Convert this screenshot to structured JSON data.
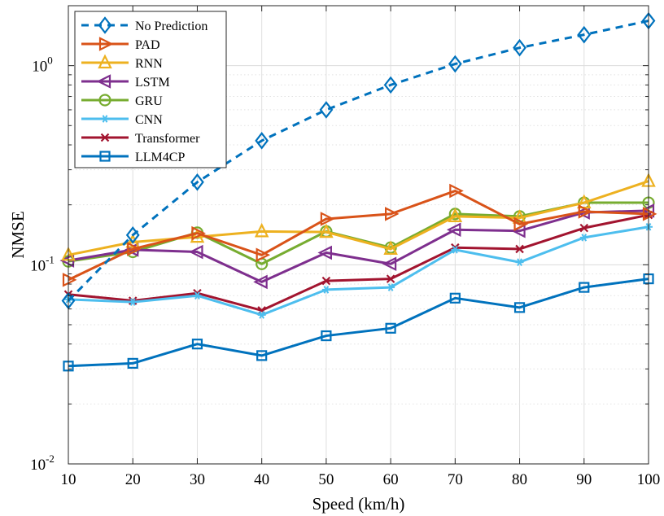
{
  "chart_data": {
    "type": "line",
    "xlabel": "Speed (km/h)",
    "ylabel": "NMSE",
    "yscale": "log",
    "xlim": [
      10,
      100
    ],
    "ylim": [
      0.01,
      2
    ],
    "grid": true,
    "legend_position": "top-left",
    "x": [
      10,
      20,
      30,
      40,
      50,
      60,
      70,
      80,
      90,
      100
    ],
    "x_ticks": [
      "10",
      "20",
      "30",
      "40",
      "50",
      "60",
      "70",
      "80",
      "90",
      "100"
    ],
    "y_ticks": [
      {
        "base": "10",
        "exp": "-2"
      },
      {
        "base": "10",
        "exp": "-1"
      },
      {
        "base": "10",
        "exp": "0"
      }
    ],
    "series": [
      {
        "name": "No Prediction",
        "color": "#0072BD",
        "dash": true,
        "marker": "diamond",
        "values": [
          0.066,
          0.141,
          0.26,
          0.42,
          0.6,
          0.8,
          1.02,
          1.23,
          1.43,
          1.68
        ]
      },
      {
        "name": "PAD",
        "color": "#D95319",
        "dash": false,
        "marker": "triangle-right",
        "values": [
          0.084,
          0.12,
          0.144,
          0.112,
          0.17,
          0.18,
          0.235,
          0.16,
          0.185,
          0.18
        ]
      },
      {
        "name": "RNN",
        "color": "#EDB120",
        "dash": false,
        "marker": "triangle-up",
        "values": [
          0.112,
          0.13,
          0.138,
          0.147,
          0.146,
          0.12,
          0.175,
          0.172,
          0.205,
          0.263
        ]
      },
      {
        "name": "LSTM",
        "color": "#7E2F8E",
        "dash": false,
        "marker": "triangle-left",
        "values": [
          0.105,
          0.119,
          0.116,
          0.082,
          0.115,
          0.101,
          0.15,
          0.148,
          0.183,
          0.187
        ]
      },
      {
        "name": "GRU",
        "color": "#77AC30",
        "dash": false,
        "marker": "circle",
        "values": [
          0.104,
          0.116,
          0.145,
          0.101,
          0.147,
          0.122,
          0.18,
          0.175,
          0.205,
          0.205
        ]
      },
      {
        "name": "CNN",
        "color": "#4DBEEE",
        "dash": false,
        "marker": "asterisk",
        "values": [
          0.067,
          0.065,
          0.07,
          0.056,
          0.075,
          0.077,
          0.119,
          0.103,
          0.137,
          0.155
        ]
      },
      {
        "name": "Transformer",
        "color": "#A2142F",
        "dash": false,
        "marker": "x",
        "values": [
          0.071,
          0.066,
          0.072,
          0.059,
          0.083,
          0.085,
          0.122,
          0.12,
          0.153,
          0.178
        ]
      },
      {
        "name": "LLM4CP",
        "color": "#0072BD",
        "dash": false,
        "marker": "square",
        "values": [
          0.031,
          0.032,
          0.04,
          0.035,
          0.044,
          0.048,
          0.068,
          0.061,
          0.077,
          0.085
        ]
      }
    ]
  }
}
